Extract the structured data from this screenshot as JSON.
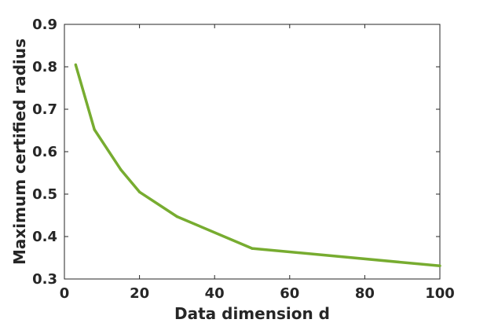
{
  "chart_data": {
    "type": "line",
    "xlabel": "Data dimension d",
    "ylabel": "Maximum certified radius",
    "xlim": [
      0,
      100
    ],
    "ylim": [
      0.3,
      0.9
    ],
    "x_ticks": [
      "0",
      "20",
      "40",
      "60",
      "80",
      "100"
    ],
    "y_ticks": [
      "0.3",
      "0.4",
      "0.5",
      "0.6",
      "0.7",
      "0.8",
      "0.9"
    ],
    "grid": false,
    "series": [
      {
        "color": "#77ac30",
        "x": [
          3,
          8,
          15,
          20,
          30,
          50,
          100
        ],
        "y": [
          0.805,
          0.652,
          0.558,
          0.505,
          0.447,
          0.372,
          0.331
        ]
      }
    ]
  }
}
